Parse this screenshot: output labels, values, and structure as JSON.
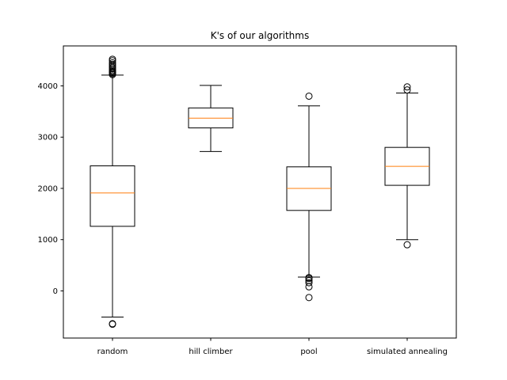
{
  "chart_data": {
    "type": "box",
    "title": "K's of our algorithms",
    "xlabel": "",
    "ylabel": "",
    "ylim": [
      -920,
      4780
    ],
    "yticks": [
      0,
      1000,
      2000,
      3000,
      4000
    ],
    "grid": false,
    "legend": "none",
    "colors": {
      "box": "#000000",
      "median": "#ff7f0e",
      "background": "#ffffff"
    },
    "categories": [
      "random",
      "hill climber",
      "pool",
      "simulated annealing"
    ],
    "boxes": [
      {
        "label": "random",
        "whisker_low": -510,
        "q1": 1260,
        "median": 1910,
        "q3": 2440,
        "whisker_high": 4210,
        "outliers": [
          -650,
          -640,
          4220,
          4240,
          4260,
          4280,
          4300,
          4330,
          4360,
          4390,
          4420,
          4450,
          4490,
          4520
        ]
      },
      {
        "label": "hill climber",
        "whisker_low": 2720,
        "q1": 3180,
        "median": 3370,
        "q3": 3570,
        "whisker_high": 4010,
        "outliers": []
      },
      {
        "label": "pool",
        "whisker_low": 270,
        "q1": 1570,
        "median": 2000,
        "q3": 2420,
        "whisker_high": 3610,
        "outliers": [
          -130,
          80,
          160,
          200,
          240,
          260,
          3800
        ]
      },
      {
        "label": "simulated annealing",
        "whisker_low": 1000,
        "q1": 2060,
        "median": 2430,
        "q3": 2800,
        "whisker_high": 3860,
        "outliers": [
          900,
          3920,
          3980
        ]
      }
    ]
  }
}
